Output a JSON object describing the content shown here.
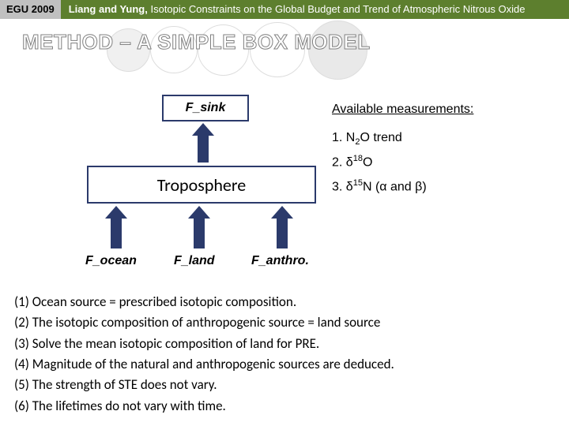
{
  "header": {
    "badge": "EGU 2009",
    "authors": "Liang and Yung,",
    "title_rest": " Isotopic Constraints on the Global Budget and Trend of Atmospheric Nitrous Oxide"
  },
  "section_title": "METHOD – A SIMPLE BOX MODEL",
  "diagram": {
    "sink_label": "F_sink",
    "box_label": "Troposphere",
    "flux1": "F_ocean",
    "flux2": "F_land",
    "flux3": "F_anthro.",
    "colors": {
      "box_border": "#2b3a6b",
      "arrow_fill": "#2b3a6b"
    }
  },
  "measurements": {
    "heading": "Available measurements:",
    "item1_pre": "1. N",
    "item1_sub": "2",
    "item1_post": "O trend",
    "item2_pre": "2. δ",
    "item2_sup": "18",
    "item2_post": "O",
    "item3_pre": "3. δ",
    "item3_sup": "15",
    "item3_post": "N (α and β)"
  },
  "notes": {
    "n1": "(1) Ocean source = prescribed isotopic composition.",
    "n2": "(2) The isotopic composition of anthropogenic source = land source",
    "n3": "(3) Solve the mean isotopic composition of land for PRE.",
    "n4": "(4) Magnitude of the natural and anthropogenic sources are deduced.",
    "n5": "(5) The strength of STE does not vary.",
    "n6": "(6) The lifetimes do not vary with time."
  }
}
